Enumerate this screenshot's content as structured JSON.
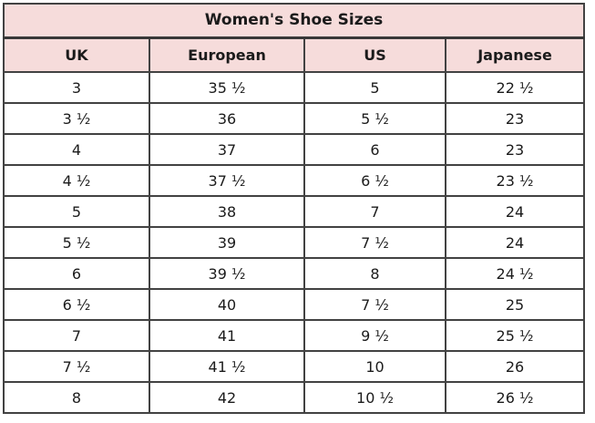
{
  "chart_data": {
    "type": "table",
    "title": "Women's Shoe Sizes",
    "columns": [
      "UK",
      "European",
      "US",
      "Japanese"
    ],
    "rows": [
      [
        "3",
        "35 ½",
        "5",
        "22 ½"
      ],
      [
        "3 ½",
        "36",
        "5 ½",
        "23"
      ],
      [
        "4",
        "37",
        "6",
        "23"
      ],
      [
        "4 ½",
        "37 ½",
        "6 ½",
        "23 ½"
      ],
      [
        "5",
        "38",
        "7",
        "24"
      ],
      [
        "5 ½",
        "39",
        "7 ½",
        "24"
      ],
      [
        "6",
        "39 ½",
        "8",
        "24 ½"
      ],
      [
        "6 ½",
        "40",
        "7 ½",
        "25"
      ],
      [
        "7",
        "41",
        "9 ½",
        "25 ½"
      ],
      [
        "7 ½",
        "41 ½",
        "10",
        "26"
      ],
      [
        "8",
        "42",
        "10 ½",
        "26 ½"
      ]
    ],
    "layout": {
      "legend": "none",
      "grid": "on"
    }
  },
  "colors": {
    "header_bg": "#f6dcdb",
    "row_bg": "#ffffff",
    "border": "#424242",
    "text": "#1b1b1b"
  }
}
